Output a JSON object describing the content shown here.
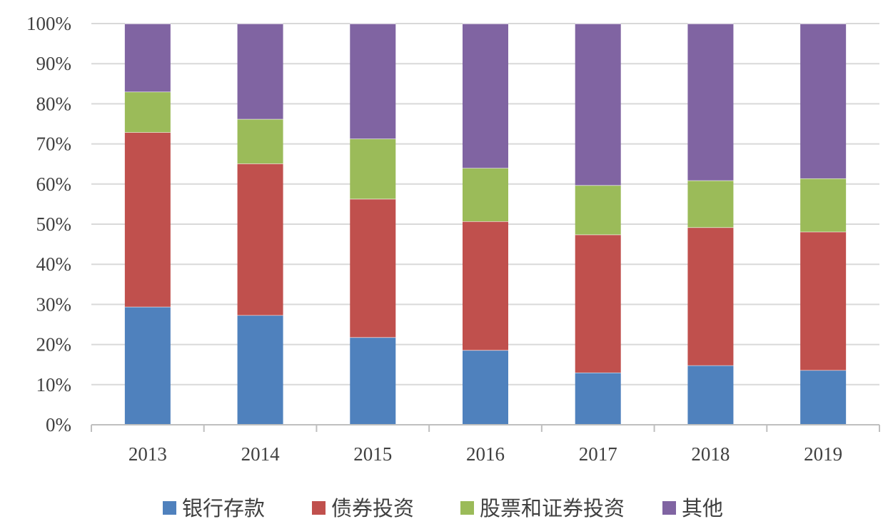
{
  "chart_data": {
    "type": "bar",
    "stacked": true,
    "categories": [
      "2013",
      "2014",
      "2015",
      "2016",
      "2017",
      "2018",
      "2019"
    ],
    "series": [
      {
        "name": "银行存款",
        "color": "#4f81bd",
        "values": [
          29.4,
          27.3,
          21.8,
          18.6,
          13.0,
          14.8,
          13.6
        ]
      },
      {
        "name": "债券投资",
        "color": "#c0504d",
        "values": [
          43.5,
          37.8,
          34.5,
          32.1,
          34.4,
          34.4,
          34.5
        ]
      },
      {
        "name": "股票和证券投资",
        "color": "#9bbb59",
        "values": [
          10.1,
          11.1,
          15.0,
          13.3,
          12.3,
          11.7,
          13.3
        ]
      },
      {
        "name": "其他",
        "color": "#8064a2",
        "values": [
          17.0,
          23.8,
          28.7,
          36.0,
          40.3,
          39.1,
          38.6
        ]
      }
    ],
    "y_ticks": [
      "0%",
      "10%",
      "20%",
      "30%",
      "40%",
      "50%",
      "60%",
      "70%",
      "80%",
      "90%",
      "100%"
    ],
    "ylim": [
      0,
      100
    ],
    "grid": true,
    "legend_position": "bottom",
    "title": "",
    "xlabel": "",
    "ylabel": ""
  }
}
